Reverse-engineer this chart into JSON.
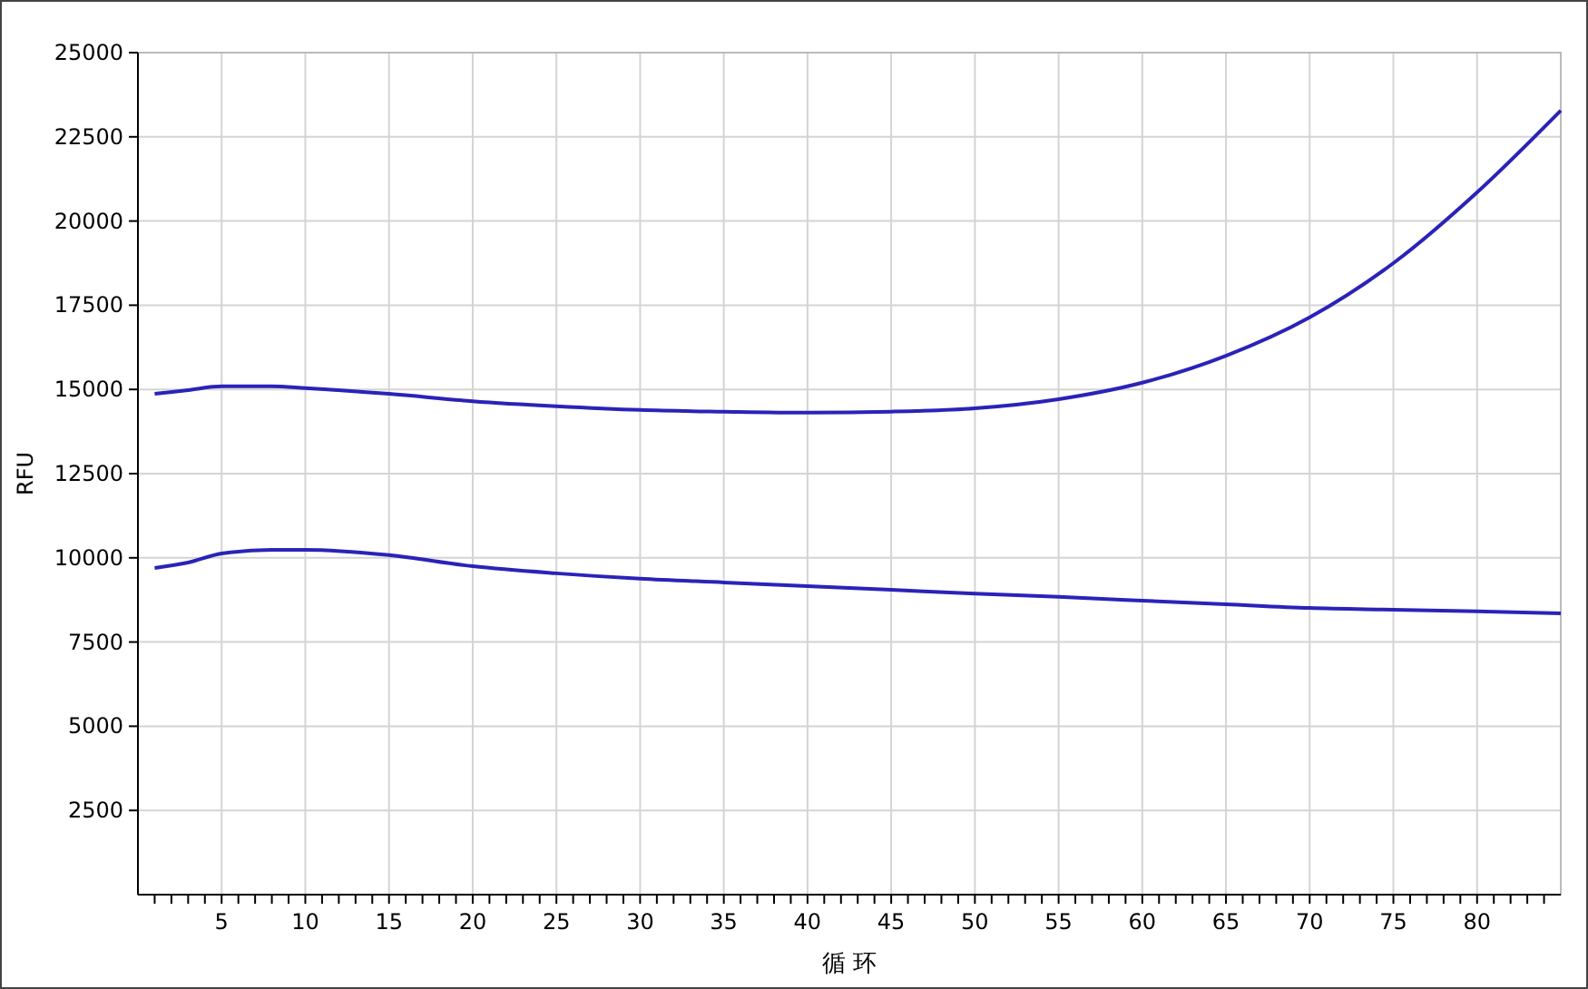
{
  "chart_data": {
    "type": "line",
    "xlabel": "循 环",
    "ylabel": "RFU",
    "xlim": [
      0,
      85
    ],
    "ylim": [
      0,
      25000
    ],
    "xticks": [
      {
        "value": 1,
        "label": null
      },
      {
        "value": 2,
        "label": null
      },
      {
        "value": 3,
        "label": null
      },
      {
        "value": 4,
        "label": null
      },
      5,
      {
        "value": 6,
        "label": null
      },
      {
        "value": 7,
        "label": null
      },
      {
        "value": 8,
        "label": null
      },
      {
        "value": 9,
        "label": null
      },
      10,
      {
        "value": 11,
        "label": null
      },
      {
        "value": 12,
        "label": null
      },
      {
        "value": 13,
        "label": null
      },
      {
        "value": 14,
        "label": null
      },
      15,
      {
        "value": 16,
        "label": null
      },
      {
        "value": 17,
        "label": null
      },
      {
        "value": 18,
        "label": null
      },
      {
        "value": 19,
        "label": null
      },
      20,
      {
        "value": 21,
        "label": null
      },
      {
        "value": 22,
        "label": null
      },
      {
        "value": 23,
        "label": null
      },
      {
        "value": 24,
        "label": null
      },
      25,
      {
        "value": 26,
        "label": null
      },
      {
        "value": 27,
        "label": null
      },
      {
        "value": 28,
        "label": null
      },
      {
        "value": 29,
        "label": null
      },
      30,
      {
        "value": 31,
        "label": null
      },
      {
        "value": 32,
        "label": null
      },
      {
        "value": 33,
        "label": null
      },
      {
        "value": 34,
        "label": null
      },
      35,
      {
        "value": 36,
        "label": null
      },
      {
        "value": 37,
        "label": null
      },
      {
        "value": 38,
        "label": null
      },
      {
        "value": 39,
        "label": null
      },
      40,
      {
        "value": 41,
        "label": null
      },
      {
        "value": 42,
        "label": null
      },
      {
        "value": 43,
        "label": null
      },
      {
        "value": 44,
        "label": null
      },
      45,
      {
        "value": 46,
        "label": null
      },
      {
        "value": 47,
        "label": null
      },
      {
        "value": 48,
        "label": null
      },
      {
        "value": 49,
        "label": null
      },
      50,
      {
        "value": 51,
        "label": null
      },
      {
        "value": 52,
        "label": null
      },
      {
        "value": 53,
        "label": null
      },
      {
        "value": 54,
        "label": null
      },
      55,
      {
        "value": 56,
        "label": null
      },
      {
        "value": 57,
        "label": null
      },
      {
        "value": 58,
        "label": null
      },
      {
        "value": 59,
        "label": null
      },
      60,
      {
        "value": 61,
        "label": null
      },
      {
        "value": 62,
        "label": null
      },
      {
        "value": 63,
        "label": null
      },
      {
        "value": 64,
        "label": null
      },
      65,
      {
        "value": 66,
        "label": null
      },
      {
        "value": 67,
        "label": null
      },
      {
        "value": 68,
        "label": null
      },
      {
        "value": 69,
        "label": null
      },
      70,
      {
        "value": 71,
        "label": null
      },
      {
        "value": 72,
        "label": null
      },
      {
        "value": 73,
        "label": null
      },
      {
        "value": 74,
        "label": null
      },
      75,
      {
        "value": 76,
        "label": null
      },
      {
        "value": 77,
        "label": null
      },
      {
        "value": 78,
        "label": null
      },
      {
        "value": 79,
        "label": null
      },
      80,
      {
        "value": 81,
        "label": null
      },
      {
        "value": 82,
        "label": null
      },
      {
        "value": 83,
        "label": null
      },
      {
        "value": 84,
        "label": null
      }
    ],
    "yticks": [
      2500,
      5000,
      7500,
      10000,
      12500,
      15000,
      17500,
      20000,
      22500,
      25000
    ],
    "grid": true,
    "marker": "none",
    "line_style": "solid",
    "x": [
      1,
      3,
      5,
      8,
      10,
      15,
      20,
      25,
      30,
      35,
      40,
      45,
      50,
      55,
      60,
      65,
      70,
      75,
      80,
      85
    ],
    "series": [
      {
        "color": "#2a23b8",
        "values": [
          14870,
          14980,
          15090,
          15090,
          15040,
          14870,
          14650,
          14500,
          14390,
          14340,
          14310,
          14340,
          14440,
          14710,
          15200,
          16000,
          17140,
          18750,
          20850,
          23280
        ]
      },
      {
        "color": "#2a23b8",
        "values": [
          9700,
          9860,
          10130,
          10240,
          10240,
          10080,
          9750,
          9540,
          9380,
          9270,
          9160,
          9050,
          8940,
          8840,
          8730,
          8620,
          8510,
          8460,
          8410,
          8350
        ]
      }
    ]
  }
}
